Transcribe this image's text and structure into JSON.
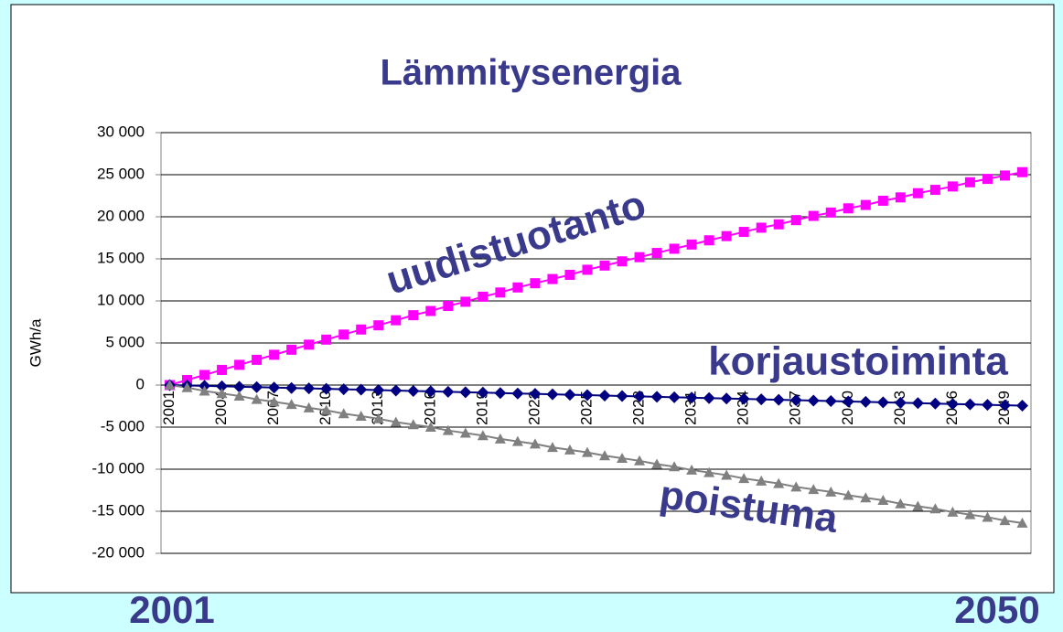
{
  "chart_data": {
    "type": "line",
    "title": "Lämmitysenergia",
    "y_label": "GWh/a",
    "categories": [
      "2001",
      null,
      null,
      "2004",
      null,
      null,
      "2007",
      null,
      null,
      "2010",
      null,
      null,
      "2013",
      null,
      null,
      "2016",
      null,
      null,
      "2019",
      null,
      null,
      "2022",
      null,
      null,
      "2025",
      null,
      null,
      "2028",
      null,
      null,
      "2031",
      null,
      null,
      "2034",
      null,
      null,
      "2037",
      null,
      null,
      "2040",
      null,
      null,
      "2043",
      null,
      null,
      "2046",
      null,
      null,
      "2049",
      null
    ],
    "series": [
      {
        "name": "uudistuotanto",
        "color": "#ff00ff",
        "marker": "square",
        "values": [
          0,
          600,
          1200,
          1800,
          2400,
          3000,
          3600,
          4200,
          4800,
          5400,
          6000,
          6600,
          7100,
          7700,
          8300,
          8800,
          9400,
          9900,
          10500,
          11000,
          11600,
          12100,
          12600,
          13100,
          13700,
          14200,
          14700,
          15200,
          15700,
          16200,
          16700,
          17200,
          17700,
          18200,
          18700,
          19100,
          19600,
          20100,
          20500,
          21000,
          21400,
          21900,
          22300,
          22800,
          23200,
          23600,
          24100,
          24500,
          24900,
          25300
        ]
      },
      {
        "name": "korjaustoiminta",
        "color": "#000080",
        "marker": "diamond",
        "values": [
          0,
          -50,
          -100,
          -150,
          -200,
          -250,
          -300,
          -350,
          -400,
          -450,
          -500,
          -550,
          -600,
          -650,
          -700,
          -750,
          -800,
          -850,
          -900,
          -950,
          -1000,
          -1050,
          -1100,
          -1150,
          -1200,
          -1250,
          -1300,
          -1350,
          -1400,
          -1450,
          -1500,
          -1550,
          -1600,
          -1650,
          -1700,
          -1750,
          -1800,
          -1850,
          -1900,
          -1950,
          -2000,
          -2050,
          -2100,
          -2150,
          -2200,
          -2250,
          -2300,
          -2350,
          -2400,
          -2450
        ]
      },
      {
        "name": "poistuma",
        "color": "#808080",
        "marker": "triangle",
        "values": [
          0,
          -300,
          -700,
          -1000,
          -1300,
          -1700,
          -2000,
          -2300,
          -2700,
          -3000,
          -3400,
          -3700,
          -4000,
          -4400,
          -4700,
          -5000,
          -5400,
          -5700,
          -6000,
          -6400,
          -6700,
          -7000,
          -7400,
          -7700,
          -8000,
          -8400,
          -8700,
          -9000,
          -9400,
          -9700,
          -10100,
          -10400,
          -10700,
          -11100,
          -11400,
          -11700,
          -12100,
          -12400,
          -12700,
          -13100,
          -13400,
          -13700,
          -14100,
          -14400,
          -14700,
          -15100,
          -15400,
          -15700,
          -16100,
          -16400
        ]
      }
    ],
    "ylim": [
      -20000,
      30000
    ],
    "yticks": [
      {
        "value": -20000,
        "label": "-20 000"
      },
      {
        "value": -15000,
        "label": "-15 000"
      },
      {
        "value": -10000,
        "label": "-10 000"
      },
      {
        "value": -5000,
        "label": "-5 000"
      },
      0,
      {
        "value": 5000,
        "label": "5 000"
      },
      {
        "value": 10000,
        "label": "10 000"
      },
      {
        "value": 15000,
        "label": "15 000"
      },
      {
        "value": 20000,
        "label": "20 000"
      },
      {
        "value": 25000,
        "label": "25 000"
      },
      {
        "value": 30000,
        "label": "30 000"
      }
    ],
    "grid": true,
    "annotations": [
      "uudistuotanto",
      "korjaustoiminta",
      "poistuma"
    ],
    "range_labels": [
      "2001",
      "2050"
    ]
  }
}
